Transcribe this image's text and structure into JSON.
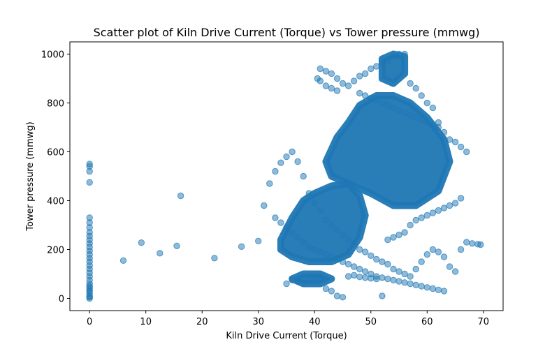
{
  "chart_data": {
    "type": "scatter",
    "title": "Scatter plot of Kiln Drive Current (Torque) vs Tower pressure (mmwg)",
    "xlabel": "Kiln Drive Current (Torque)",
    "ylabel": "Tower pressure (mmwg)",
    "xlim": [
      -3.5,
      73.5
    ],
    "ylim": [
      -50,
      1050
    ],
    "xticks": [
      0,
      10,
      20,
      30,
      40,
      50,
      60,
      70
    ],
    "yticks": [
      0,
      200,
      400,
      600,
      800,
      1000
    ],
    "grid": false,
    "legend": "none",
    "marker_color": "#1f77b4",
    "marker_alpha": 0.5,
    "series": [
      {
        "x": [
          0,
          0,
          0,
          0,
          0,
          0,
          0,
          0,
          0,
          0,
          0,
          0,
          0,
          0,
          0,
          0,
          0,
          0,
          0,
          0,
          0,
          0,
          0,
          0,
          0,
          0,
          0,
          0,
          0,
          0,
          6,
          9.2,
          12.5,
          15.5,
          16.2,
          22.2,
          27,
          30,
          31,
          32,
          33,
          34,
          35,
          36,
          37,
          38,
          39,
          40,
          41,
          42,
          43,
          44,
          45,
          46,
          47,
          48,
          49,
          50,
          51,
          52,
          53,
          54,
          55,
          56,
          57,
          58,
          59,
          60,
          61,
          62,
          63,
          64,
          65,
          66,
          67,
          68,
          69,
          69.5,
          35,
          36,
          37,
          38,
          39,
          40,
          41,
          42,
          43,
          44,
          45,
          46,
          47,
          48,
          49,
          50,
          51,
          52,
          53,
          54,
          55,
          56,
          57,
          58,
          59,
          60,
          61,
          62,
          63,
          64,
          65,
          66,
          41,
          42,
          43,
          44,
          45,
          46,
          47,
          48,
          49,
          50,
          51,
          52,
          53,
          54,
          55,
          56,
          57,
          58,
          59,
          60,
          61,
          62,
          63,
          64,
          65,
          66,
          67,
          33,
          34,
          35,
          36,
          37,
          38,
          39,
          40,
          41,
          42,
          43,
          44,
          45,
          46,
          47,
          48,
          49,
          50,
          51,
          52,
          53,
          54,
          55,
          56,
          57,
          58,
          59,
          60,
          61,
          62,
          63,
          40.5,
          41,
          42,
          43,
          44,
          48,
          49,
          50,
          51,
          52,
          53,
          54,
          55,
          56,
          57,
          58,
          59,
          60,
          61,
          62
        ],
        "y": [
          0,
          10,
          20,
          35,
          50,
          60,
          75,
          90,
          105,
          120,
          135,
          150,
          165,
          180,
          195,
          210,
          225,
          240,
          255,
          270,
          290,
          310,
          330,
          475,
          520,
          540,
          550,
          30,
          45,
          5,
          155,
          228,
          185,
          215,
          420,
          165,
          212,
          235,
          380,
          470,
          520,
          555,
          580,
          600,
          560,
          500,
          430,
          390,
          360,
          320,
          300,
          280,
          260,
          240,
          225,
          200,
          190,
          175,
          160,
          150,
          140,
          120,
          110,
          100,
          90,
          120,
          150,
          180,
          200,
          190,
          170,
          130,
          110,
          200,
          230,
          225,
          222,
          220,
          60,
          75,
          70,
          65,
          80,
          85,
          75,
          40,
          30,
          10,
          5,
          90,
          95,
          88,
          85,
          82,
          80,
          10,
          240,
          250,
          260,
          270,
          300,
          320,
          330,
          340,
          350,
          360,
          370,
          380,
          390,
          410,
          940,
          930,
          920,
          900,
          880,
          870,
          890,
          910,
          920,
          940,
          950,
          960,
          970,
          990,
          1000,
          1000,
          880,
          860,
          830,
          800,
          780,
          720,
          680,
          650,
          640,
          620,
          600,
          330,
          310,
          290,
          270,
          250,
          230,
          210,
          200,
          190,
          180,
          170,
          160,
          150,
          140,
          130,
          120,
          110,
          100,
          90,
          85,
          80,
          75,
          70,
          65,
          60,
          55,
          50,
          45,
          40,
          35,
          30,
          900,
          890,
          870,
          860,
          850,
          840,
          830,
          820,
          810,
          800,
          790,
          780,
          770,
          760,
          750,
          740,
          730,
          720,
          710,
          700
        ]
      }
    ]
  }
}
